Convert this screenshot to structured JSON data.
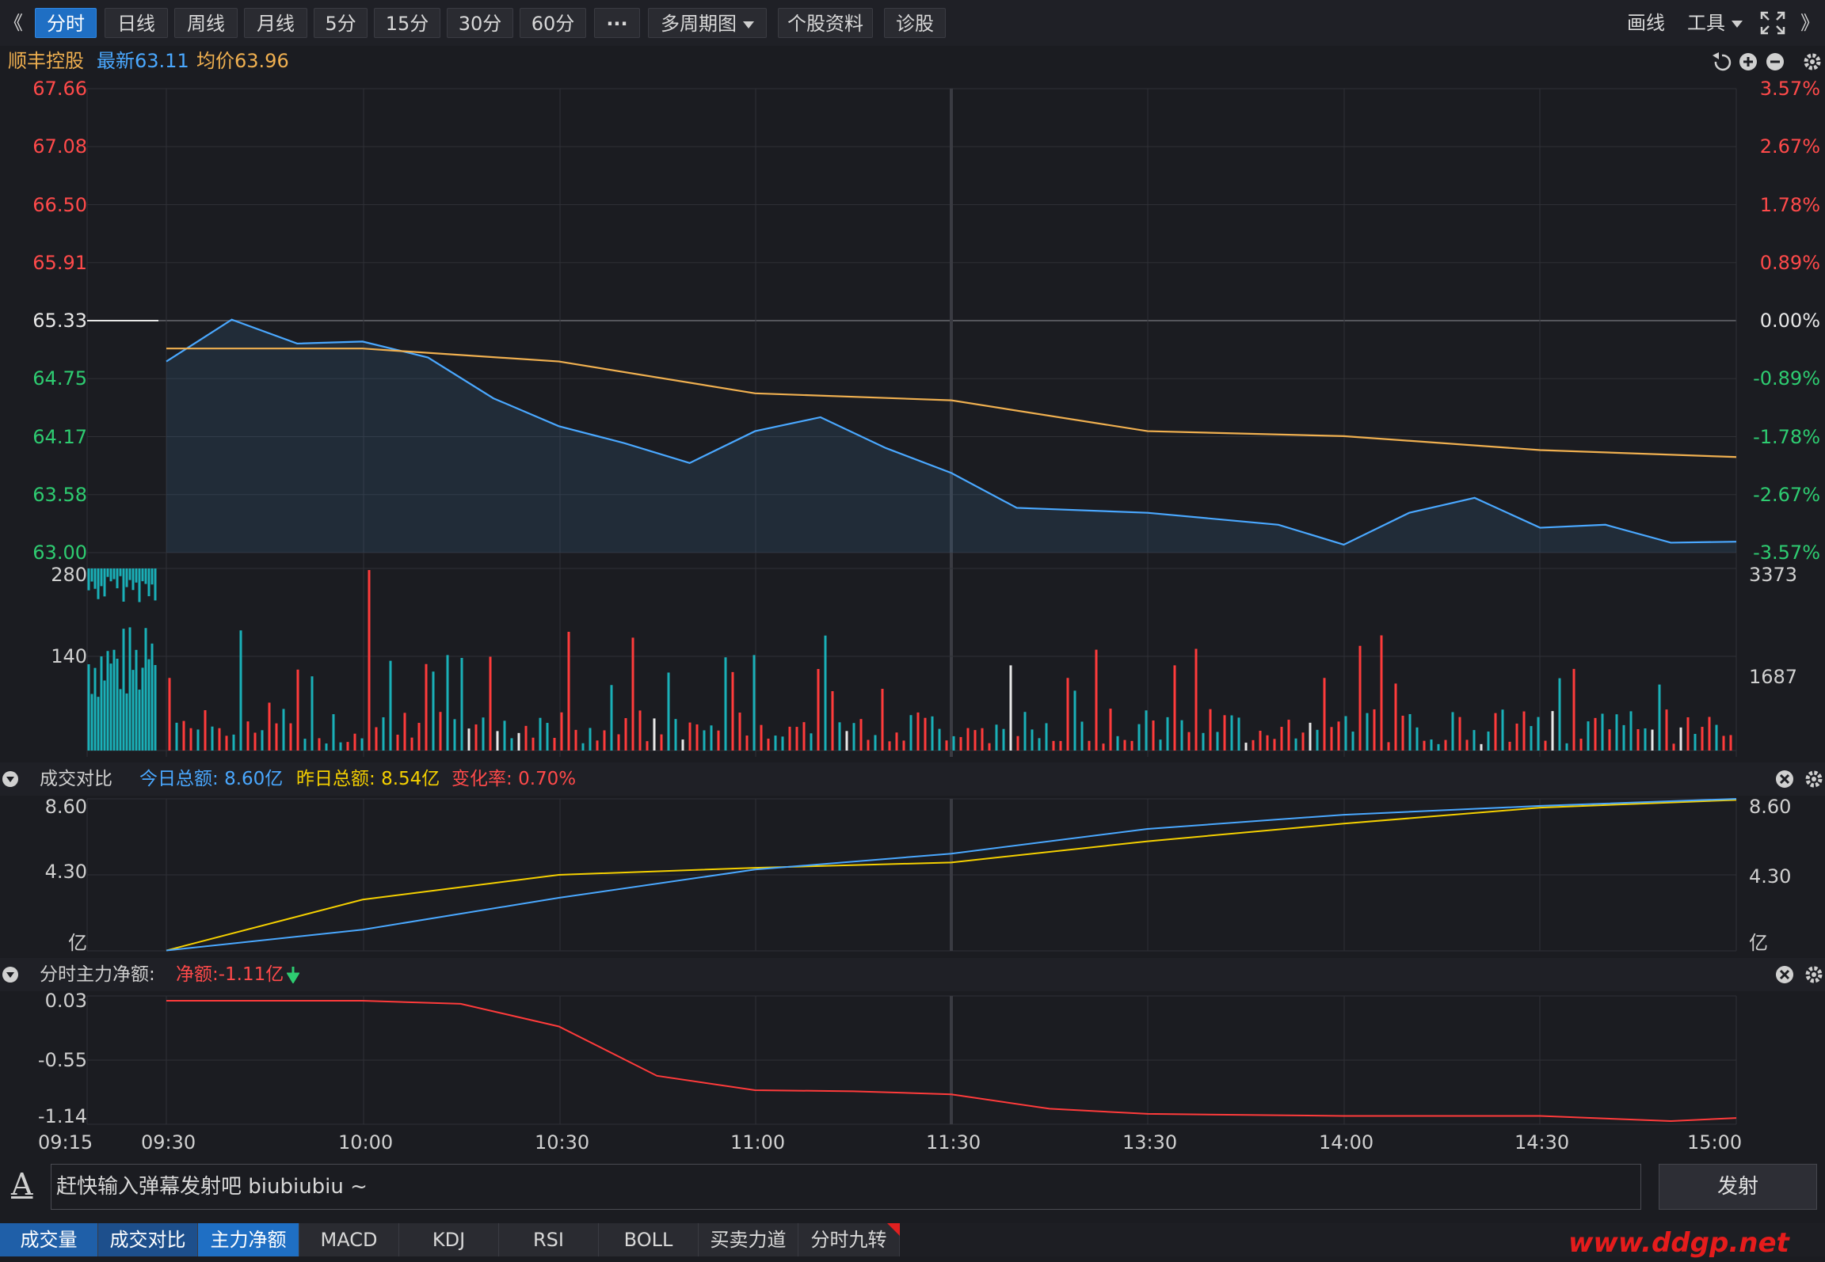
{
  "toolbar": {
    "left_arrow": "《",
    "tabs": [
      "分时",
      "日线",
      "周线",
      "月线",
      "5分",
      "15分",
      "30分",
      "60分",
      "···",
      "多周期图",
      "个股资料",
      "诊股"
    ],
    "active_tab": "分时",
    "draw_label": "画线",
    "tools_label": "工具",
    "right_arrow": "》"
  },
  "stock": {
    "name": "顺丰控股",
    "latest_label": "最新",
    "latest": "63.11",
    "avg_label": "均价",
    "avg": "63.96"
  },
  "price_axis": {
    "left": [
      "67.66",
      "67.08",
      "66.50",
      "65.91",
      "65.33",
      "64.75",
      "64.17",
      "63.58",
      "63.00"
    ],
    "right": [
      "3.57%",
      "2.67%",
      "1.78%",
      "0.89%",
      "0.00%",
      "-0.89%",
      "-1.78%",
      "-2.67%",
      "-3.57%"
    ],
    "prev_close": 65.33,
    "max": 67.66,
    "min": 63.0
  },
  "volume_axis": {
    "left": [
      "280",
      "140"
    ],
    "right": [
      "3373",
      "1687"
    ]
  },
  "volume_panel": {
    "title": "成交对比",
    "today_label": "今日总额:",
    "today": "8.60亿",
    "yesterday_label": "昨日总额:",
    "yesterday": "8.54亿",
    "change_label": "变化率:",
    "change": "0.70%",
    "axis_left": [
      "8.60",
      "4.30",
      "亿"
    ],
    "axis_right": [
      "8.60",
      "4.30",
      "亿"
    ]
  },
  "fund_panel": {
    "title": "分时主力净额:",
    "net_label": "净额:",
    "net": "-1.11亿",
    "axis": [
      "0.03",
      "-0.55",
      "-1.14"
    ]
  },
  "time_axis": [
    "09:15",
    "09:30",
    "10:00",
    "10:30",
    "11:00",
    "11:30",
    "13:30",
    "14:00",
    "14:30",
    "15:00"
  ],
  "danmu": {
    "icon": "A",
    "placeholder": "赶快输入弹幕发射吧 biubiubiu ~",
    "send_label": "发射"
  },
  "bottom_tabs": [
    "成交量",
    "成交对比",
    "主力净额",
    "MACD",
    "KDJ",
    "RSI",
    "BOLL",
    "买卖力道",
    "分时九转"
  ],
  "active_bottom_tab": "主力净额",
  "watermark": "www.ddgp.net",
  "colors": {
    "up": "#ff3b3b",
    "down": "#2ecc71",
    "price_line": "#4aa8ff",
    "avg_line": "#f0b050",
    "yellow": "#f5d000",
    "teal": "#1ab0b8"
  },
  "chart_data": [
    {
      "type": "line",
      "title": "顺丰控股 分时",
      "series": [
        {
          "name": "最新",
          "x": [
            "09:30",
            "09:40",
            "09:50",
            "10:00",
            "10:10",
            "10:20",
            "10:30",
            "10:40",
            "10:50",
            "11:00",
            "11:10",
            "11:20",
            "11:30",
            "13:10",
            "13:30",
            "13:50",
            "14:00",
            "14:10",
            "14:20",
            "14:30",
            "14:40",
            "14:50",
            "15:00"
          ],
          "values": [
            64.92,
            65.34,
            65.1,
            65.12,
            64.96,
            64.55,
            64.27,
            64.1,
            63.9,
            64.22,
            64.36,
            64.05,
            63.8,
            63.45,
            63.4,
            63.28,
            63.08,
            63.4,
            63.55,
            63.25,
            63.28,
            63.1,
            63.11
          ]
        },
        {
          "name": "均价",
          "x": [
            "09:30",
            "10:00",
            "10:30",
            "11:00",
            "11:30",
            "13:30",
            "14:00",
            "14:30",
            "15:00"
          ],
          "values": [
            65.05,
            65.05,
            64.92,
            64.6,
            64.53,
            64.22,
            64.17,
            64.03,
            63.96
          ]
        }
      ],
      "ylim": [
        63.0,
        67.66
      ]
    },
    {
      "type": "line",
      "title": "成交对比",
      "series": [
        {
          "name": "今日总额",
          "x": [
            "09:30",
            "10:00",
            "10:30",
            "11:00",
            "11:30",
            "13:30",
            "14:00",
            "14:30",
            "15:00"
          ],
          "values": [
            0.02,
            1.2,
            3.0,
            4.6,
            5.5,
            6.9,
            7.7,
            8.2,
            8.6
          ]
        },
        {
          "name": "昨日总额",
          "x": [
            "09:30",
            "10:00",
            "10:30",
            "11:00",
            "11:30",
            "13:30",
            "14:00",
            "14:30",
            "15:00"
          ],
          "values": [
            0.02,
            2.9,
            4.3,
            4.7,
            5.0,
            6.2,
            7.2,
            8.1,
            8.54
          ]
        }
      ],
      "ylim": [
        0,
        8.6
      ]
    },
    {
      "type": "line",
      "title": "分时主力净额",
      "series": [
        {
          "name": "净额",
          "x": [
            "09:30",
            "10:00",
            "10:15",
            "10:30",
            "10:45",
            "11:00",
            "11:15",
            "11:30",
            "13:15",
            "13:30",
            "14:00",
            "14:30",
            "14:50",
            "15:00"
          ],
          "values": [
            0.03,
            0.03,
            0.0,
            -0.22,
            -0.7,
            -0.84,
            -0.85,
            -0.88,
            -1.02,
            -1.07,
            -1.09,
            -1.09,
            -1.14,
            -1.11
          ]
        }
      ],
      "ylim": [
        -1.14,
        0.03
      ]
    }
  ]
}
